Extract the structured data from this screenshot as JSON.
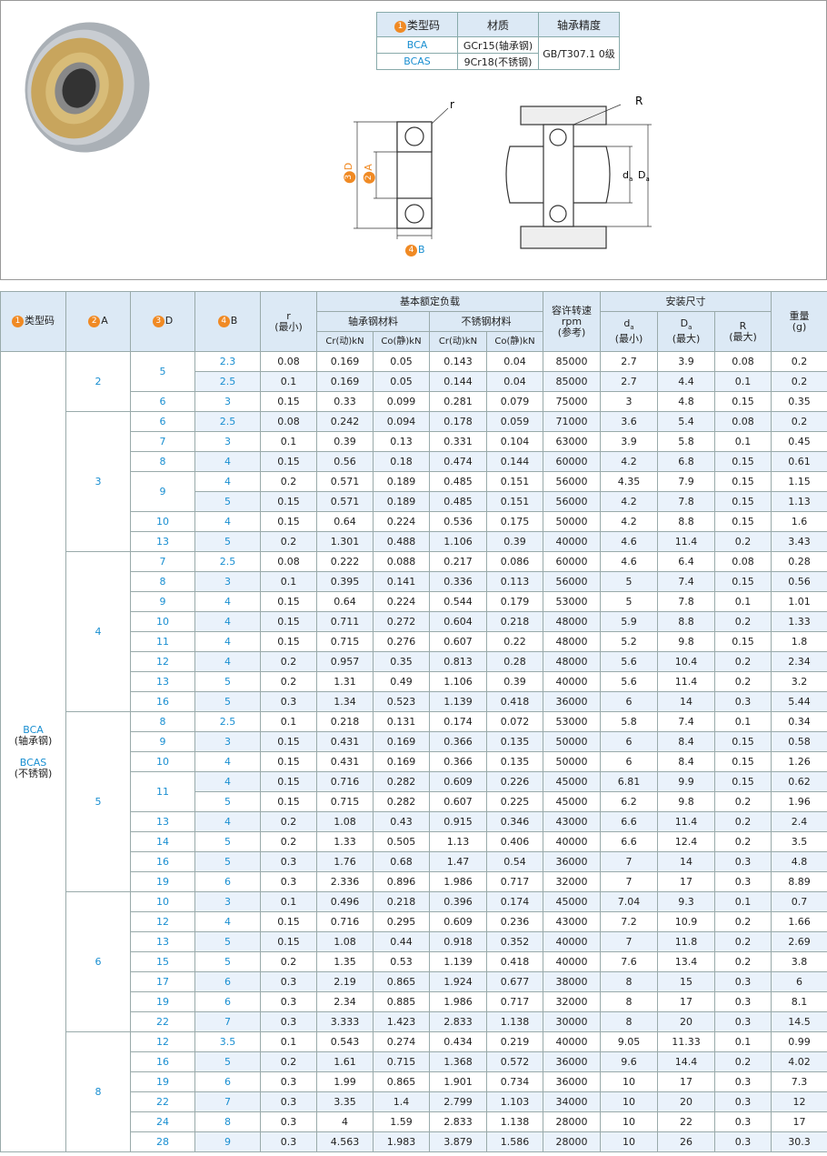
{
  "top_table": {
    "headers": [
      {
        "marker": "1",
        "text": "类型码"
      },
      "材质",
      "轴承精度"
    ],
    "rows": [
      [
        "BCA",
        "GCr15(轴承钢)"
      ],
      [
        "BCAS",
        "9Cr18(不锈钢)"
      ]
    ],
    "precision": "GB/T307.1 0级"
  },
  "diagram": {
    "r": "r",
    "D": {
      "marker": "3",
      "text": "D"
    },
    "A": {
      "marker": "2",
      "text": "A"
    },
    "B": {
      "marker": "4",
      "text": "B"
    },
    "R": "R",
    "da": {
      "main": "d",
      "sub": "a"
    },
    "Da": {
      "main": "D",
      "sub": "a"
    }
  },
  "main_table": {
    "headers": {
      "type": {
        "marker": "1",
        "text": "类型码"
      },
      "A": {
        "marker": "2",
        "text": "A"
      },
      "D": {
        "marker": "3",
        "text": "D"
      },
      "B": {
        "marker": "4",
        "text": "B"
      },
      "r": [
        "r",
        "(最小)"
      ],
      "load": "基本额定负载",
      "bearing_steel": "轴承钢材料",
      "stainless": "不锈钢材料",
      "load_cols": [
        "Cr(动)kN",
        "Co(静)kN",
        "Cr(动)kN",
        "Co(静)kN"
      ],
      "rpm": [
        "容许转速",
        "rpm",
        "(参考)"
      ],
      "mount": "安装尺寸",
      "da": {
        "main": "d",
        "sub": "a",
        "note": "(最小)"
      },
      "Da": {
        "main": "D",
        "sub": "a",
        "note": "(最大)"
      },
      "R": [
        "R",
        "(最大)"
      ],
      "weight": [
        "重量",
        "(g)"
      ]
    },
    "type_values": [
      "BCA",
      "(轴承钢)",
      "BCAS",
      "(不锈钢)"
    ],
    "groups": [
      {
        "A": "2",
        "d_groups": [
          {
            "D": "5",
            "rows": [
              [
                "2.3",
                "0.08",
                "0.169",
                "0.05",
                "0.143",
                "0.04",
                "85000",
                "2.7",
                "3.9",
                "0.08",
                "0.2"
              ],
              [
                "2.5",
                "0.1",
                "0.169",
                "0.05",
                "0.144",
                "0.04",
                "85000",
                "2.7",
                "4.4",
                "0.1",
                "0.2"
              ]
            ]
          },
          {
            "D": "6",
            "rows": [
              [
                "3",
                "0.15",
                "0.33",
                "0.099",
                "0.281",
                "0.079",
                "75000",
                "3",
                "4.8",
                "0.15",
                "0.35"
              ]
            ]
          }
        ]
      },
      {
        "A": "3",
        "d_groups": [
          {
            "D": "6",
            "rows": [
              [
                "2.5",
                "0.08",
                "0.242",
                "0.094",
                "0.178",
                "0.059",
                "71000",
                "3.6",
                "5.4",
                "0.08",
                "0.2"
              ]
            ]
          },
          {
            "D": "7",
            "rows": [
              [
                "3",
                "0.1",
                "0.39",
                "0.13",
                "0.331",
                "0.104",
                "63000",
                "3.9",
                "5.8",
                "0.1",
                "0.45"
              ]
            ]
          },
          {
            "D": "8",
            "rows": [
              [
                "4",
                "0.15",
                "0.56",
                "0.18",
                "0.474",
                "0.144",
                "60000",
                "4.2",
                "6.8",
                "0.15",
                "0.61"
              ]
            ]
          },
          {
            "D": "9",
            "rows": [
              [
                "4",
                "0.2",
                "0.571",
                "0.189",
                "0.485",
                "0.151",
                "56000",
                "4.35",
                "7.9",
                "0.15",
                "1.15"
              ],
              [
                "5",
                "0.15",
                "0.571",
                "0.189",
                "0.485",
                "0.151",
                "56000",
                "4.2",
                "7.8",
                "0.15",
                "1.13"
              ]
            ]
          },
          {
            "D": "10",
            "rows": [
              [
                "4",
                "0.15",
                "0.64",
                "0.224",
                "0.536",
                "0.175",
                "50000",
                "4.2",
                "8.8",
                "0.15",
                "1.6"
              ]
            ]
          },
          {
            "D": "13",
            "rows": [
              [
                "5",
                "0.2",
                "1.301",
                "0.488",
                "1.106",
                "0.39",
                "40000",
                "4.6",
                "11.4",
                "0.2",
                "3.43"
              ]
            ]
          }
        ]
      },
      {
        "A": "4",
        "d_groups": [
          {
            "D": "7",
            "rows": [
              [
                "2.5",
                "0.08",
                "0.222",
                "0.088",
                "0.217",
                "0.086",
                "60000",
                "4.6",
                "6.4",
                "0.08",
                "0.28"
              ]
            ]
          },
          {
            "D": "8",
            "rows": [
              [
                "3",
                "0.1",
                "0.395",
                "0.141",
                "0.336",
                "0.113",
                "56000",
                "5",
                "7.4",
                "0.15",
                "0.56"
              ]
            ]
          },
          {
            "D": "9",
            "rows": [
              [
                "4",
                "0.15",
                "0.64",
                "0.224",
                "0.544",
                "0.179",
                "53000",
                "5",
                "7.8",
                "0.1",
                "1.01"
              ]
            ]
          },
          {
            "D": "10",
            "rows": [
              [
                "4",
                "0.15",
                "0.711",
                "0.272",
                "0.604",
                "0.218",
                "48000",
                "5.9",
                "8.8",
                "0.2",
                "1.33"
              ]
            ]
          },
          {
            "D": "11",
            "rows": [
              [
                "4",
                "0.15",
                "0.715",
                "0.276",
                "0.607",
                "0.22",
                "48000",
                "5.2",
                "9.8",
                "0.15",
                "1.8"
              ]
            ]
          },
          {
            "D": "12",
            "rows": [
              [
                "4",
                "0.2",
                "0.957",
                "0.35",
                "0.813",
                "0.28",
                "48000",
                "5.6",
                "10.4",
                "0.2",
                "2.34"
              ]
            ]
          },
          {
            "D": "13",
            "rows": [
              [
                "5",
                "0.2",
                "1.31",
                "0.49",
                "1.106",
                "0.39",
                "40000",
                "5.6",
                "11.4",
                "0.2",
                "3.2"
              ]
            ]
          },
          {
            "D": "16",
            "rows": [
              [
                "5",
                "0.3",
                "1.34",
                "0.523",
                "1.139",
                "0.418",
                "36000",
                "6",
                "14",
                "0.3",
                "5.44"
              ]
            ]
          }
        ]
      },
      {
        "A": "5",
        "d_groups": [
          {
            "D": "8",
            "rows": [
              [
                "2.5",
                "0.1",
                "0.218",
                "0.131",
                "0.174",
                "0.072",
                "53000",
                "5.8",
                "7.4",
                "0.1",
                "0.34"
              ]
            ]
          },
          {
            "D": "9",
            "rows": [
              [
                "3",
                "0.15",
                "0.431",
                "0.169",
                "0.366",
                "0.135",
                "50000",
                "6",
                "8.4",
                "0.15",
                "0.58"
              ]
            ]
          },
          {
            "D": "10",
            "rows": [
              [
                "4",
                "0.15",
                "0.431",
                "0.169",
                "0.366",
                "0.135",
                "50000",
                "6",
                "8.4",
                "0.15",
                "1.26"
              ]
            ]
          },
          {
            "D": "11",
            "rows": [
              [
                "4",
                "0.15",
                "0.716",
                "0.282",
                "0.609",
                "0.226",
                "45000",
                "6.81",
                "9.9",
                "0.15",
                "0.62"
              ],
              [
                "5",
                "0.15",
                "0.715",
                "0.282",
                "0.607",
                "0.225",
                "45000",
                "6.2",
                "9.8",
                "0.2",
                "1.96"
              ]
            ]
          },
          {
            "D": "13",
            "rows": [
              [
                "4",
                "0.2",
                "1.08",
                "0.43",
                "0.915",
                "0.346",
                "43000",
                "6.6",
                "11.4",
                "0.2",
                "2.4"
              ]
            ]
          },
          {
            "D": "14",
            "rows": [
              [
                "5",
                "0.2",
                "1.33",
                "0.505",
                "1.13",
                "0.406",
                "40000",
                "6.6",
                "12.4",
                "0.2",
                "3.5"
              ]
            ]
          },
          {
            "D": "16",
            "rows": [
              [
                "5",
                "0.3",
                "1.76",
                "0.68",
                "1.47",
                "0.54",
                "36000",
                "7",
                "14",
                "0.3",
                "4.8"
              ]
            ]
          },
          {
            "D": "19",
            "rows": [
              [
                "6",
                "0.3",
                "2.336",
                "0.896",
                "1.986",
                "0.717",
                "32000",
                "7",
                "17",
                "0.3",
                "8.89"
              ]
            ]
          }
        ]
      },
      {
        "A": "6",
        "d_groups": [
          {
            "D": "10",
            "rows": [
              [
                "3",
                "0.1",
                "0.496",
                "0.218",
                "0.396",
                "0.174",
                "45000",
                "7.04",
                "9.3",
                "0.1",
                "0.7"
              ]
            ]
          },
          {
            "D": "12",
            "rows": [
              [
                "4",
                "0.15",
                "0.716",
                "0.295",
                "0.609",
                "0.236",
                "43000",
                "7.2",
                "10.9",
                "0.2",
                "1.66"
              ]
            ]
          },
          {
            "D": "13",
            "rows": [
              [
                "5",
                "0.15",
                "1.08",
                "0.44",
                "0.918",
                "0.352",
                "40000",
                "7",
                "11.8",
                "0.2",
                "2.69"
              ]
            ]
          },
          {
            "D": "15",
            "rows": [
              [
                "5",
                "0.2",
                "1.35",
                "0.53",
                "1.139",
                "0.418",
                "40000",
                "7.6",
                "13.4",
                "0.2",
                "3.8"
              ]
            ]
          },
          {
            "D": "17",
            "rows": [
              [
                "6",
                "0.3",
                "2.19",
                "0.865",
                "1.924",
                "0.677",
                "38000",
                "8",
                "15",
                "0.3",
                "6"
              ]
            ]
          },
          {
            "D": "19",
            "rows": [
              [
                "6",
                "0.3",
                "2.34",
                "0.885",
                "1.986",
                "0.717",
                "32000",
                "8",
                "17",
                "0.3",
                "8.1"
              ]
            ]
          },
          {
            "D": "22",
            "rows": [
              [
                "7",
                "0.3",
                "3.333",
                "1.423",
                "2.833",
                "1.138",
                "30000",
                "8",
                "20",
                "0.3",
                "14.5"
              ]
            ]
          }
        ]
      },
      {
        "A": "8",
        "d_groups": [
          {
            "D": "12",
            "rows": [
              [
                "3.5",
                "0.1",
                "0.543",
                "0.274",
                "0.434",
                "0.219",
                "40000",
                "9.05",
                "11.33",
                "0.1",
                "0.99"
              ]
            ]
          },
          {
            "D": "16",
            "rows": [
              [
                "5",
                "0.2",
                "1.61",
                "0.715",
                "1.368",
                "0.572",
                "36000",
                "9.6",
                "14.4",
                "0.2",
                "4.02"
              ]
            ]
          },
          {
            "D": "19",
            "rows": [
              [
                "6",
                "0.3",
                "1.99",
                "0.865",
                "1.901",
                "0.734",
                "36000",
                "10",
                "17",
                "0.3",
                "7.3"
              ]
            ]
          },
          {
            "D": "22",
            "rows": [
              [
                "7",
                "0.3",
                "3.35",
                "1.4",
                "2.799",
                "1.103",
                "34000",
                "10",
                "20",
                "0.3",
                "12"
              ]
            ]
          },
          {
            "D": "24",
            "rows": [
              [
                "8",
                "0.3",
                "4",
                "1.59",
                "2.833",
                "1.138",
                "28000",
                "10",
                "22",
                "0.3",
                "17"
              ]
            ]
          },
          {
            "D": "28",
            "rows": [
              [
                "9",
                "0.3",
                "4.563",
                "1.983",
                "3.879",
                "1.586",
                "28000",
                "10",
                "26",
                "0.3",
                "30.3"
              ]
            ]
          }
        ]
      }
    ]
  }
}
